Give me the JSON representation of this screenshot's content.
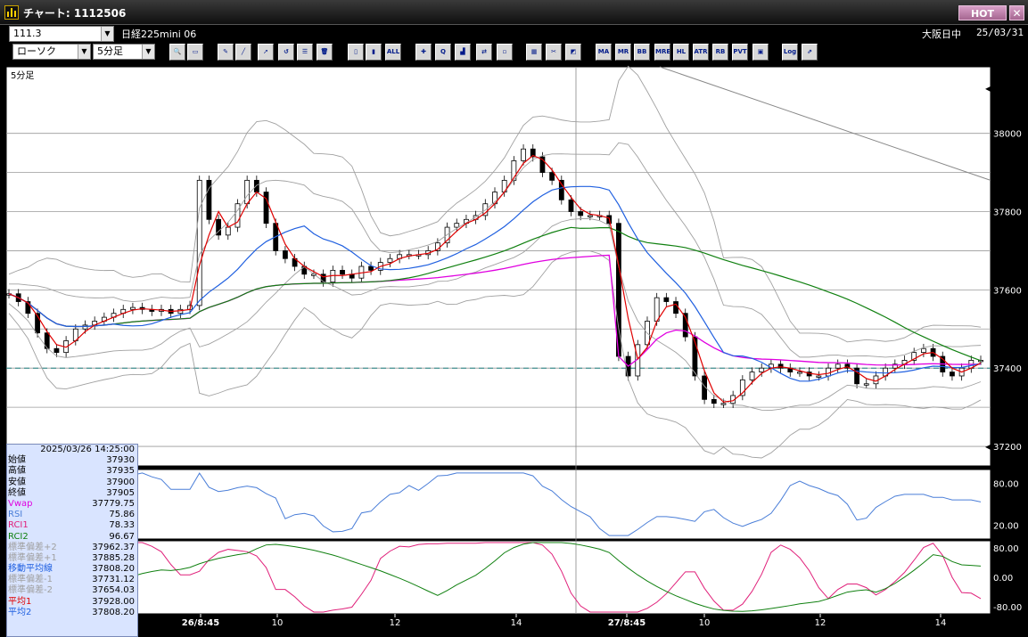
{
  "window": {
    "title": "チャート: 1112506",
    "hot_label": "HOT",
    "close_label": "✕"
  },
  "toolbar_row1": {
    "symbol_value": "111.3",
    "instrument": "日経225mini 06",
    "session": "大阪日中",
    "date": "25/03/31"
  },
  "toolbar_row2": {
    "chart_type_value": "ローソク",
    "interval_value": "5分足",
    "buttons": [
      {
        "name": "zoom",
        "icon": "magnifier-icon",
        "text": "🔍"
      },
      {
        "name": "window",
        "icon": "window-icon",
        "text": "▭"
      },
      {
        "name": "pencil",
        "icon": "pencil-icon",
        "text": "✎"
      },
      {
        "name": "line",
        "icon": "line-icon",
        "text": "╱"
      },
      {
        "name": "cursor",
        "icon": "cursor-icon",
        "text": "➚"
      },
      {
        "name": "undo",
        "icon": "undo-icon",
        "text": "↺"
      },
      {
        "name": "notes",
        "icon": "notes-icon",
        "text": "☰"
      },
      {
        "name": "trash",
        "icon": "trash-icon",
        "text": "🗑"
      },
      {
        "name": "candle-a",
        "icon": "candle-icon",
        "text": "▯"
      },
      {
        "name": "candle-b",
        "icon": "candle-icon",
        "text": "▮"
      },
      {
        "name": "all",
        "icon": "all-icon",
        "text": "ALL"
      },
      {
        "name": "tool-a",
        "icon": "tool-icon",
        "text": "✚"
      },
      {
        "name": "tool-b",
        "icon": "search-chart-icon",
        "text": "Q"
      },
      {
        "name": "tool-c",
        "icon": "chart-icon",
        "text": "▟"
      },
      {
        "name": "tool-d",
        "icon": "arrow-icon",
        "text": "⇄"
      },
      {
        "name": "tool-e",
        "icon": "disabled-icon",
        "text": "▫"
      },
      {
        "name": "tool-f",
        "icon": "grid-icon",
        "text": "▦"
      },
      {
        "name": "tool-g",
        "icon": "wrench-icon",
        "text": "✂"
      },
      {
        "name": "tool-h",
        "icon": "palette-icon",
        "text": "◩"
      },
      {
        "name": "ma",
        "icon": "ma-icon",
        "text": "MA"
      },
      {
        "name": "mr",
        "icon": "mr-icon",
        "text": "MR"
      },
      {
        "name": "bb",
        "icon": "bb-icon",
        "text": "BB"
      },
      {
        "name": "mre",
        "icon": "mre-icon",
        "text": "MRE"
      },
      {
        "name": "hl",
        "icon": "hl-icon",
        "text": "HL"
      },
      {
        "name": "atr",
        "icon": "atr-icon",
        "text": "ATR"
      },
      {
        "name": "rb",
        "icon": "rb-icon",
        "text": "RB"
      },
      {
        "name": "pvt",
        "icon": "pvt-icon",
        "text": "PVT"
      },
      {
        "name": "frame",
        "icon": "frame-icon",
        "text": "▣"
      },
      {
        "name": "log",
        "icon": "log-icon",
        "text": "Log"
      },
      {
        "name": "export",
        "icon": "export-icon",
        "text": "⇗"
      }
    ]
  },
  "chart": {
    "period_label": "5分足",
    "price_ticks": [
      "38000",
      "37800",
      "37600",
      "37400",
      "37200"
    ],
    "rsi_ticks": [
      "80.00",
      "20.00"
    ],
    "rci_ticks": [
      "80.00",
      "0.00",
      "-80.00"
    ],
    "x_ticks": [
      "26/8:45",
      "10",
      "12",
      "14",
      "27/8:45",
      "10",
      "12",
      "14"
    ],
    "colors": {
      "bg": "#ffffff",
      "vwap": "#e000e0",
      "ma_short": "#e00000",
      "ma_mid": "#2060e0",
      "ma_long": "#108010",
      "bands": "#a0a0a0",
      "rsi": "#4a7ed8",
      "rci1": "#e0207a",
      "rci2": "#108010"
    }
  },
  "chart_data": {
    "type": "candlestick",
    "interval": "5分足",
    "ylim": [
      37150,
      38170
    ],
    "sessions": [
      "26/8:45",
      "27/8:45"
    ],
    "reference_line": 37400,
    "close_series": [
      37590,
      37570,
      37540,
      37490,
      37450,
      37440,
      37470,
      37500,
      37510,
      37520,
      37530,
      37540,
      37550,
      37555,
      37550,
      37545,
      37550,
      37540,
      37550,
      37560,
      37880,
      37780,
      37740,
      37760,
      37820,
      37880,
      37850,
      37770,
      37700,
      37680,
      37660,
      37640,
      37640,
      37620,
      37650,
      37640,
      37630,
      37660,
      37650,
      37670,
      37680,
      37690,
      37690,
      37690,
      37700,
      37720,
      37760,
      37770,
      37780,
      37790,
      37820,
      37850,
      37880,
      37930,
      37960,
      37940,
      37900,
      37880,
      37830,
      37800,
      37790,
      37790,
      37790,
      37770,
      37430,
      37380,
      37460,
      37520,
      37580,
      37570,
      37540,
      37480,
      37380,
      37320,
      37310,
      37310,
      37330,
      37370,
      37390,
      37400,
      37410,
      37400,
      37390,
      37390,
      37380,
      37380,
      37400,
      37410,
      37400,
      37360,
      37360,
      37380,
      37400,
      37410,
      37420,
      37440,
      37450,
      37430,
      37390,
      37380,
      37400,
      37420,
      37420
    ],
    "indicators_panel": {
      "datetime": "2025/03/26  14:25:00",
      "rows": [
        {
          "key": "始値",
          "value": "37930",
          "color": "#000000"
        },
        {
          "key": "高値",
          "value": "37935",
          "color": "#000000"
        },
        {
          "key": "安値",
          "value": "37900",
          "color": "#000000"
        },
        {
          "key": "終値",
          "value": "37905",
          "color": "#000000"
        },
        {
          "key": "Vwap",
          "value": "37779.75",
          "color": "#e000e0"
        },
        {
          "key": "RSI",
          "value": "75.86",
          "color": "#4a7ed8"
        },
        {
          "key": "RCI1",
          "value": "78.33",
          "color": "#e0207a"
        },
        {
          "key": "RCI2",
          "value": "96.67",
          "color": "#108010"
        },
        {
          "key": "標準偏差+2",
          "value": "37962.37",
          "color": "#a0a0a0"
        },
        {
          "key": "標準偏差+1",
          "value": "37885.28",
          "color": "#a0a0a0"
        },
        {
          "key": "移動平均線",
          "value": "37808.20",
          "color": "#2060e0"
        },
        {
          "key": "標準偏差-1",
          "value": "37731.12",
          "color": "#a0a0a0"
        },
        {
          "key": "標準偏差-2",
          "value": "37654.03",
          "color": "#a0a0a0"
        },
        {
          "key": "平均1",
          "value": "37928.00",
          "color": "#e00000"
        },
        {
          "key": "平均2",
          "value": "37808.20",
          "color": "#2060e0"
        }
      ]
    }
  }
}
